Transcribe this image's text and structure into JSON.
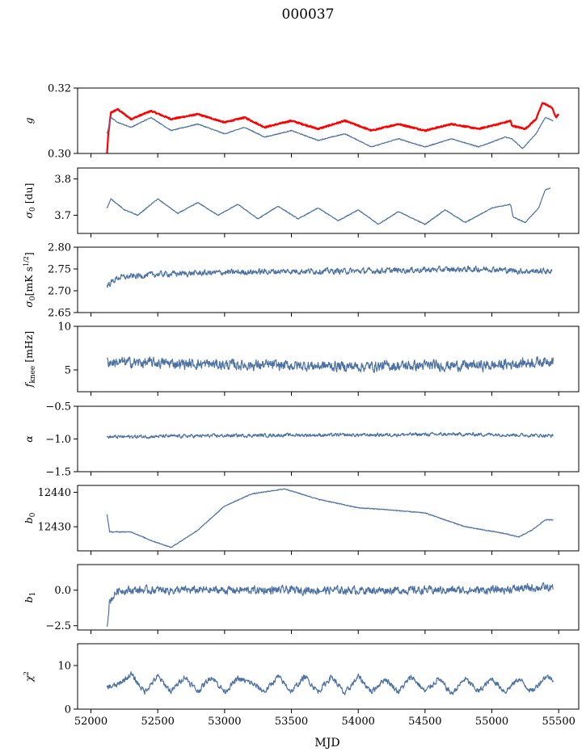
{
  "figure": {
    "title": "000037",
    "xlabel": "MJD"
  },
  "colors": {
    "series": "#4c72a4",
    "highlight": "#ff0000"
  },
  "x_axis": {
    "range": [
      51900,
      55650
    ],
    "ticks": [
      52000,
      52500,
      53000,
      53500,
      54000,
      54500,
      55000,
      55500
    ]
  },
  "chart_data": [
    {
      "type": "line",
      "id": "g",
      "ylabel": "g",
      "ylabel_html": "<tspan font-style='italic'>g</tspan>",
      "ylim": [
        0.3,
        0.32
      ],
      "yticks": [
        0.3,
        0.32
      ],
      "ytick_labels": [
        "0.30",
        "0.32"
      ],
      "series": [
        {
          "color": "#ff0000",
          "lw": 2.2,
          "points": [
            [
              52120,
              0.3
            ],
            [
              52130,
              0.306
            ],
            [
              52150,
              0.3125
            ],
            [
              52200,
              0.3135
            ],
            [
              52300,
              0.3105
            ],
            [
              52450,
              0.313
            ],
            [
              52600,
              0.3105
            ],
            [
              52800,
              0.312
            ],
            [
              53000,
              0.3095
            ],
            [
              53150,
              0.311
            ],
            [
              53300,
              0.308
            ],
            [
              53500,
              0.31
            ],
            [
              53700,
              0.3075
            ],
            [
              53900,
              0.31
            ],
            [
              54100,
              0.307
            ],
            [
              54300,
              0.309
            ],
            [
              54500,
              0.307
            ],
            [
              54700,
              0.309
            ],
            [
              54900,
              0.3075
            ],
            [
              55100,
              0.3095
            ],
            [
              55140,
              0.31
            ],
            [
              55150,
              0.3085
            ],
            [
              55250,
              0.3075
            ],
            [
              55330,
              0.3105
            ],
            [
              55380,
              0.3155
            ],
            [
              55450,
              0.314
            ],
            [
              55480,
              0.311
            ],
            [
              55500,
              0.312
            ]
          ]
        },
        {
          "color": "#4c72a4",
          "lw": 1.2,
          "points": [
            [
              52120,
              0.306
            ],
            [
              52150,
              0.311
            ],
            [
              52200,
              0.3095
            ],
            [
              52300,
              0.308
            ],
            [
              52450,
              0.311
            ],
            [
              52600,
              0.307
            ],
            [
              52800,
              0.309
            ],
            [
              53000,
              0.306
            ],
            [
              53150,
              0.308
            ],
            [
              53300,
              0.305
            ],
            [
              53500,
              0.307
            ],
            [
              53700,
              0.304
            ],
            [
              53900,
              0.306
            ],
            [
              54100,
              0.302
            ],
            [
              54300,
              0.3045
            ],
            [
              54500,
              0.302
            ],
            [
              54700,
              0.3045
            ],
            [
              54900,
              0.302
            ],
            [
              55100,
              0.305
            ],
            [
              55150,
              0.3045
            ],
            [
              55230,
              0.3015
            ],
            [
              55330,
              0.306
            ],
            [
              55400,
              0.311
            ],
            [
              55460,
              0.31
            ]
          ]
        }
      ]
    },
    {
      "type": "line",
      "id": "sigma0",
      "ylabel": "σ0 [du]",
      "ylim": [
        3.65,
        3.83
      ],
      "yticks": [
        3.7,
        3.8
      ],
      "ytick_labels": [
        "3.7",
        "3.8"
      ],
      "series": [
        {
          "color": "#4c72a4",
          "lw": 1.2,
          "points": [
            [
              52120,
              3.72
            ],
            [
              52150,
              3.745
            ],
            [
              52250,
              3.715
            ],
            [
              52350,
              3.7
            ],
            [
              52500,
              3.745
            ],
            [
              52650,
              3.705
            ],
            [
              52800,
              3.735
            ],
            [
              52950,
              3.7
            ],
            [
              53100,
              3.73
            ],
            [
              53250,
              3.69
            ],
            [
              53400,
              3.725
            ],
            [
              53550,
              3.69
            ],
            [
              53700,
              3.72
            ],
            [
              53850,
              3.685
            ],
            [
              54000,
              3.715
            ],
            [
              54150,
              3.675
            ],
            [
              54300,
              3.71
            ],
            [
              54500,
              3.675
            ],
            [
              54650,
              3.715
            ],
            [
              54800,
              3.68
            ],
            [
              55000,
              3.72
            ],
            [
              55140,
              3.73
            ],
            [
              55160,
              3.695
            ],
            [
              55250,
              3.68
            ],
            [
              55350,
              3.72
            ],
            [
              55400,
              3.77
            ],
            [
              55440,
              3.775
            ]
          ]
        }
      ]
    },
    {
      "type": "line",
      "id": "sigma0_mk",
      "ylabel": "σ0[mK s1/2]",
      "ylim": [
        2.65,
        2.8
      ],
      "yticks": [
        2.65,
        2.7,
        2.75,
        2.8
      ],
      "ytick_labels": [
        "2.65",
        "2.70",
        "2.75",
        "2.80"
      ],
      "series": [
        {
          "color": "#4c72a4",
          "lw": 1.2,
          "noise": 0.01,
          "points": [
            [
              52120,
              2.712
            ],
            [
              52200,
              2.73
            ],
            [
              52500,
              2.738
            ],
            [
              53000,
              2.742
            ],
            [
              53500,
              2.745
            ],
            [
              54000,
              2.745
            ],
            [
              54500,
              2.748
            ],
            [
              55000,
              2.75
            ],
            [
              55200,
              2.745
            ],
            [
              55450,
              2.745
            ]
          ]
        }
      ]
    },
    {
      "type": "line",
      "id": "fknee",
      "ylabel": "fknee [mHz]",
      "ylim": [
        2.5,
        10
      ],
      "yticks": [
        5,
        10
      ],
      "ytick_labels": [
        "5",
        "10"
      ],
      "series": [
        {
          "color": "#4c72a4",
          "lw": 1.2,
          "noise": 0.9,
          "points": [
            [
              52120,
              5.9
            ],
            [
              52500,
              5.8
            ],
            [
              53000,
              5.6
            ],
            [
              53500,
              5.5
            ],
            [
              54000,
              5.4
            ],
            [
              54500,
              5.5
            ],
            [
              55000,
              5.5
            ],
            [
              55400,
              6.0
            ],
            [
              55460,
              6.2
            ]
          ]
        }
      ]
    },
    {
      "type": "line",
      "id": "alpha",
      "ylabel": "α",
      "ylim": [
        -1.5,
        -0.5
      ],
      "yticks": [
        -1.5,
        -1.0,
        -0.5
      ],
      "ytick_labels": [
        "−1.5",
        "−1.0",
        "−0.5"
      ],
      "series": [
        {
          "color": "#4c72a4",
          "lw": 1.2,
          "noise": 0.04,
          "points": [
            [
              52120,
              -0.97
            ],
            [
              52500,
              -0.96
            ],
            [
              53000,
              -0.95
            ],
            [
              53500,
              -0.94
            ],
            [
              54000,
              -0.94
            ],
            [
              54500,
              -0.93
            ],
            [
              55000,
              -0.93
            ],
            [
              55460,
              -0.95
            ]
          ]
        }
      ]
    },
    {
      "type": "line",
      "id": "b0",
      "ylabel": "b0",
      "ylim": [
        12423,
        12442
      ],
      "yticks": [
        12430,
        12440
      ],
      "ytick_labels": [
        "12430",
        "12440"
      ],
      "series": [
        {
          "color": "#4c72a4",
          "lw": 1.2,
          "points": [
            [
              52120,
              12433.5
            ],
            [
              52140,
              12428.5
            ],
            [
              52300,
              12428.5
            ],
            [
              52450,
              12426.0
            ],
            [
              52600,
              12424.0
            ],
            [
              52800,
              12429.0
            ],
            [
              53000,
              12436.0
            ],
            [
              53200,
              12439.5
            ],
            [
              53450,
              12441.0
            ],
            [
              53700,
              12438.0
            ],
            [
              54000,
              12435.5
            ],
            [
              54200,
              12435.0
            ],
            [
              54500,
              12434.0
            ],
            [
              54800,
              12430.0
            ],
            [
              55100,
              12428.0
            ],
            [
              55200,
              12427.0
            ],
            [
              55300,
              12429.0
            ],
            [
              55400,
              12432.0
            ],
            [
              55460,
              12432.0
            ]
          ]
        }
      ]
    },
    {
      "type": "line",
      "id": "b1",
      "ylabel": "b1",
      "ylim": [
        -2.8,
        1.8
      ],
      "yticks": [
        -2.5,
        0.0
      ],
      "ytick_labels": [
        "−2.5",
        "0.0"
      ],
      "series": [
        {
          "color": "#4c72a4",
          "lw": 1.2,
          "noise": 0.42,
          "points": [
            [
              52120,
              -2.4
            ],
            [
              52140,
              -0.8
            ],
            [
              52200,
              0.0
            ],
            [
              53000,
              0.0
            ],
            [
              54000,
              0.0
            ],
            [
              55000,
              0.0
            ],
            [
              55380,
              0.2
            ],
            [
              55460,
              0.1
            ]
          ]
        }
      ]
    },
    {
      "type": "line",
      "id": "chi2",
      "ylabel": "χ2",
      "ylim": [
        0,
        15
      ],
      "yticks": [
        0,
        10
      ],
      "ytick_labels": [
        "0",
        "10"
      ],
      "series": [
        {
          "color": "#4c72a4",
          "lw": 1.2,
          "noise": 1.0,
          "points": [
            [
              52120,
              5.0
            ],
            [
              52200,
              5.5
            ],
            [
              52300,
              8.0
            ],
            [
              52400,
              4.0
            ],
            [
              52500,
              7.5
            ],
            [
              52600,
              4.0
            ],
            [
              52700,
              7.5
            ],
            [
              52800,
              4.0
            ],
            [
              52900,
              7.5
            ],
            [
              53000,
              4.0
            ],
            [
              53100,
              7.0
            ],
            [
              53200,
              6.0
            ],
            [
              53300,
              4.0
            ],
            [
              53400,
              7.5
            ],
            [
              53500,
              4.0
            ],
            [
              53600,
              7.5
            ],
            [
              53700,
              4.0
            ],
            [
              53800,
              7.5
            ],
            [
              53900,
              3.5
            ],
            [
              54000,
              7.5
            ],
            [
              54100,
              4.0
            ],
            [
              54200,
              7.0
            ],
            [
              54300,
              4.0
            ],
            [
              54400,
              7.5
            ],
            [
              54500,
              4.0
            ],
            [
              54600,
              7.0
            ],
            [
              54700,
              3.5
            ],
            [
              54800,
              7.0
            ],
            [
              54900,
              4.0
            ],
            [
              55000,
              7.0
            ],
            [
              55100,
              4.0
            ],
            [
              55200,
              7.0
            ],
            [
              55300,
              4.0
            ],
            [
              55400,
              7.5
            ],
            [
              55460,
              7.0
            ]
          ]
        }
      ]
    }
  ]
}
